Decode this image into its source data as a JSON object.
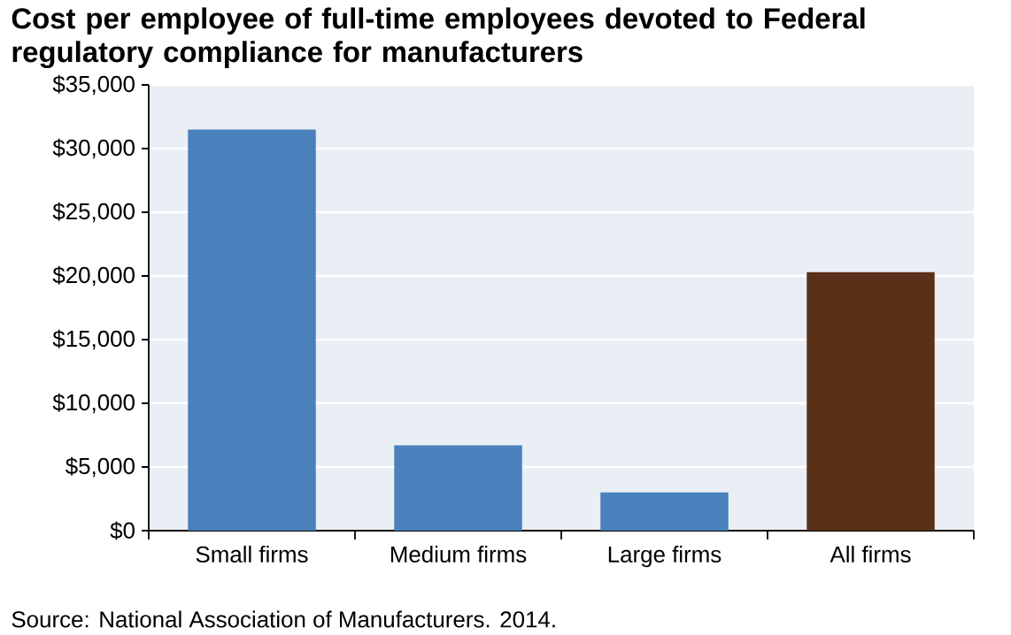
{
  "chart_data": {
    "type": "bar",
    "title": "Cost per employee of full-time employees devoted to Federal regulatory compliance for manufacturers",
    "categories": [
      "Small firms",
      "Medium firms",
      "Large firms",
      "All firms"
    ],
    "values": [
      31500,
      6700,
      3000,
      20300
    ],
    "colors": [
      "#4a81bd",
      "#4a81bd",
      "#4a81bd",
      "#5a3018"
    ],
    "ylim": [
      0,
      35000
    ],
    "yticks": [
      {
        "value": 0,
        "label": "$0"
      },
      {
        "value": 5000,
        "label": "$5,000"
      },
      {
        "value": 10000,
        "label": "$10,000"
      },
      {
        "value": 15000,
        "label": "$15,000"
      },
      {
        "value": 20000,
        "label": "$20,000"
      },
      {
        "value": 25000,
        "label": "$25,000"
      },
      {
        "value": 30000,
        "label": "$30,000"
      },
      {
        "value": 35000,
        "label": "$35,000"
      }
    ],
    "grid": "y",
    "annotations": [
      "Source: National Association of Manufacturers. 2014."
    ]
  }
}
